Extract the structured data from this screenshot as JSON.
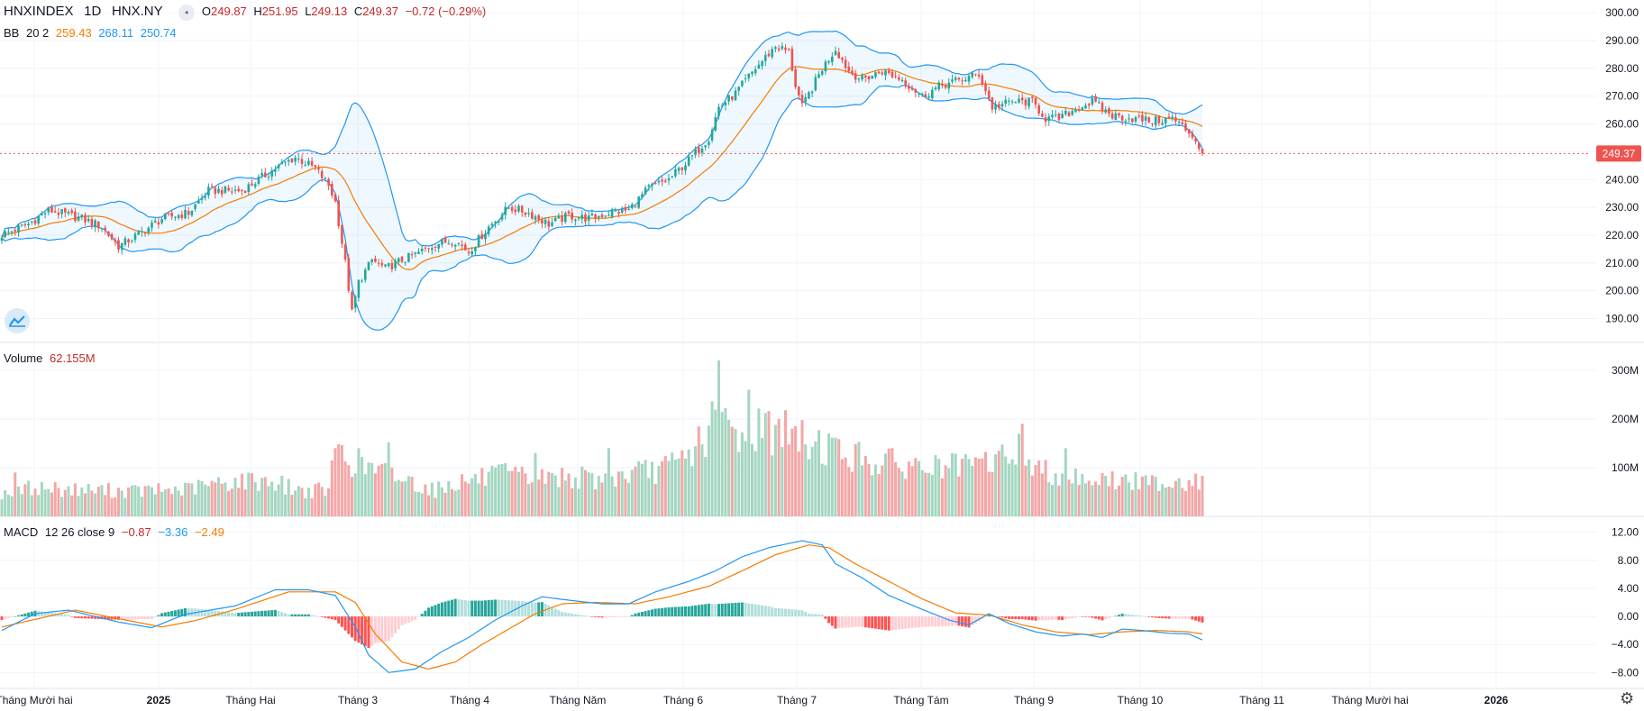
{
  "header": {
    "symbol": "HNXINDEX",
    "interval": "1D",
    "exchange": "HNX.NY",
    "open_label": "O",
    "open": "249.87",
    "high_label": "H",
    "high": "251.95",
    "low_label": "L",
    "low": "249.13",
    "close_label": "C",
    "close": "249.37",
    "change": "−0.72 (−0.29%)"
  },
  "bb_legend": {
    "name": "BB",
    "params": "20 2",
    "basis": "259.43",
    "upper": "268.11",
    "lower": "250.74"
  },
  "volume_legend": {
    "name": "Volume",
    "value": "62.155M"
  },
  "macd_legend": {
    "name": "MACD",
    "params": "12 26 close 9",
    "hist": "−0.87",
    "macd": "−3.36",
    "signal": "−2.49"
  },
  "colors": {
    "up": "#26a69a",
    "down": "#ef5350",
    "vol_up": "#a5d6c1",
    "vol_down": "#f4a6a6",
    "bb_band": "#2196f3",
    "bb_basis": "#f57c00",
    "macd": "#2196f3",
    "signal": "#f57c00"
  },
  "icons": {
    "logo": "tradingview-cloud-icon",
    "settings": "gear-icon"
  },
  "chart_data": [
    {
      "type": "candlestick",
      "title": "HNXINDEX 1D HNX.NY",
      "ylim": [
        184,
        302
      ],
      "y_ticks": [
        "190.00",
        "200.00",
        "210.00",
        "220.00",
        "230.00",
        "240.00",
        "250.00",
        "260.00",
        "270.00",
        "280.00",
        "290.00",
        "300.00"
      ],
      "last_price": "249.37",
      "x_ticks": [
        "Tháng Mười hai",
        "2025",
        "Tháng Hai",
        "Tháng 3",
        "Tháng 4",
        "Tháng Năm",
        "Tháng 6",
        "Tháng 7",
        "Tháng Tám",
        "Tháng 9",
        "Tháng 10",
        "Tháng 11",
        "Tháng Mười hai",
        "2026"
      ],
      "close_anchors": [
        [
          0,
          220
        ],
        [
          8,
          224
        ],
        [
          14,
          229
        ],
        [
          24,
          226
        ],
        [
          30,
          223
        ],
        [
          35,
          216
        ],
        [
          42,
          221
        ],
        [
          48,
          226
        ],
        [
          56,
          228
        ],
        [
          62,
          236
        ],
        [
          72,
          236
        ],
        [
          82,
          244
        ],
        [
          88,
          248
        ],
        [
          94,
          244
        ],
        [
          98,
          238
        ],
        [
          100,
          232
        ],
        [
          103,
          210
        ],
        [
          105,
          192
        ],
        [
          107,
          203
        ],
        [
          111,
          211
        ],
        [
          115,
          208
        ],
        [
          120,
          211
        ],
        [
          124,
          213
        ],
        [
          130,
          217
        ],
        [
          136,
          218
        ],
        [
          140,
          214
        ],
        [
          146,
          223
        ],
        [
          152,
          230
        ],
        [
          158,
          228
        ],
        [
          164,
          224
        ],
        [
          170,
          227
        ],
        [
          176,
          226
        ],
        [
          182,
          228
        ],
        [
          188,
          229
        ],
        [
          194,
          237
        ],
        [
          200,
          240
        ],
        [
          206,
          247
        ],
        [
          212,
          255
        ],
        [
          215,
          266
        ],
        [
          220,
          271
        ],
        [
          226,
          280
        ],
        [
          232,
          288
        ],
        [
          236,
          286
        ],
        [
          238,
          274
        ],
        [
          240,
          266
        ],
        [
          246,
          280
        ],
        [
          250,
          287
        ],
        [
          254,
          279
        ],
        [
          258,
          276
        ],
        [
          264,
          279
        ],
        [
          270,
          276
        ],
        [
          276,
          270
        ],
        [
          282,
          274
        ],
        [
          288,
          276
        ],
        [
          293,
          278
        ],
        [
          297,
          266
        ],
        [
          303,
          268
        ],
        [
          309,
          268
        ],
        [
          313,
          262
        ],
        [
          317,
          262
        ],
        [
          323,
          266
        ],
        [
          327,
          268
        ],
        [
          333,
          263
        ],
        [
          339,
          262
        ],
        [
          345,
          261
        ],
        [
          351,
          262
        ],
        [
          355,
          258
        ],
        [
          357,
          256
        ],
        [
          360,
          249.37
        ]
      ]
    },
    {
      "type": "bar",
      "title": "Volume",
      "ylim": [
        0,
        320
      ],
      "y_ticks": [
        "100M",
        "200M",
        "300M"
      ],
      "vol_anchors": [
        [
          0,
          48
        ],
        [
          10,
          60
        ],
        [
          20,
          55
        ],
        [
          40,
          52
        ],
        [
          55,
          55
        ],
        [
          60,
          62
        ],
        [
          70,
          72
        ],
        [
          80,
          74
        ],
        [
          90,
          52
        ],
        [
          98,
          54
        ],
        [
          100,
          130
        ],
        [
          110,
          100
        ],
        [
          120,
          78
        ],
        [
          130,
          54
        ],
        [
          136,
          70
        ],
        [
          150,
          85
        ],
        [
          160,
          78
        ],
        [
          170,
          82
        ],
        [
          180,
          74
        ],
        [
          190,
          88
        ],
        [
          200,
          100
        ],
        [
          205,
          120
        ],
        [
          210,
          160
        ],
        [
          215,
          200
        ],
        [
          220,
          170
        ],
        [
          225,
          185
        ],
        [
          230,
          180
        ],
        [
          235,
          170
        ],
        [
          240,
          155
        ],
        [
          245,
          150
        ],
        [
          250,
          135
        ],
        [
          260,
          115
        ],
        [
          270,
          105
        ],
        [
          280,
          100
        ],
        [
          290,
          100
        ],
        [
          300,
          120
        ],
        [
          305,
          135
        ],
        [
          310,
          95
        ],
        [
          320,
          85
        ],
        [
          330,
          75
        ],
        [
          340,
          70
        ],
        [
          350,
          72
        ],
        [
          360,
          70
        ]
      ],
      "vol_spikes": [
        [
          4,
          90
        ],
        [
          101,
          148
        ],
        [
          116,
          152
        ],
        [
          160,
          130
        ],
        [
          182,
          140
        ],
        [
          215,
          320
        ],
        [
          224,
          260
        ],
        [
          233,
          200
        ],
        [
          238,
          185
        ],
        [
          248,
          170
        ],
        [
          306,
          190
        ],
        [
          319,
          140
        ]
      ]
    },
    {
      "type": "line",
      "title": "MACD 12 26 close 9",
      "ylim": [
        -9.5,
        13.5
      ],
      "y_ticks": [
        "−8.00",
        "−4.00",
        "0.00",
        "4.00",
        "8.00",
        "12.00"
      ],
      "macd_anchors": [
        [
          0,
          -2.0
        ],
        [
          10,
          0.4
        ],
        [
          20,
          0.9
        ],
        [
          35,
          -0.8
        ],
        [
          45,
          -1.6
        ],
        [
          55,
          0.3
        ],
        [
          70,
          1.5
        ],
        [
          82,
          3.8
        ],
        [
          92,
          3.8
        ],
        [
          100,
          3.0
        ],
        [
          106,
          -1.5
        ],
        [
          110,
          -5.5
        ],
        [
          116,
          -8.0
        ],
        [
          124,
          -7.5
        ],
        [
          132,
          -5.0
        ],
        [
          140,
          -3.0
        ],
        [
          148,
          -0.5
        ],
        [
          156,
          1.5
        ],
        [
          162,
          2.8
        ],
        [
          172,
          2.2
        ],
        [
          180,
          1.8
        ],
        [
          188,
          1.8
        ],
        [
          196,
          3.5
        ],
        [
          206,
          5.0
        ],
        [
          214,
          6.5
        ],
        [
          222,
          8.5
        ],
        [
          230,
          9.8
        ],
        [
          240,
          10.8
        ],
        [
          246,
          10.2
        ],
        [
          250,
          7.5
        ],
        [
          258,
          5.5
        ],
        [
          266,
          3.0
        ],
        [
          276,
          1.0
        ],
        [
          284,
          -0.5
        ],
        [
          290,
          -1.2
        ],
        [
          296,
          0.4
        ],
        [
          302,
          -1.0
        ],
        [
          310,
          -2.2
        ],
        [
          318,
          -2.8
        ],
        [
          324,
          -2.5
        ],
        [
          330,
          -3.0
        ],
        [
          336,
          -1.8
        ],
        [
          342,
          -2.0
        ],
        [
          350,
          -2.4
        ],
        [
          356,
          -2.5
        ],
        [
          360,
          -3.36
        ]
      ],
      "signal_anchors": [
        [
          0,
          -1.5
        ],
        [
          12,
          -0.2
        ],
        [
          22,
          0.9
        ],
        [
          38,
          -0.6
        ],
        [
          48,
          -1.5
        ],
        [
          58,
          -0.6
        ],
        [
          70,
          1.0
        ],
        [
          86,
          3.5
        ],
        [
          100,
          3.5
        ],
        [
          106,
          2.0
        ],
        [
          112,
          -2.5
        ],
        [
          120,
          -6.5
        ],
        [
          128,
          -7.5
        ],
        [
          136,
          -6.5
        ],
        [
          144,
          -4.0
        ],
        [
          152,
          -1.8
        ],
        [
          160,
          0.4
        ],
        [
          168,
          1.8
        ],
        [
          178,
          2.0
        ],
        [
          190,
          1.8
        ],
        [
          200,
          2.8
        ],
        [
          212,
          4.3
        ],
        [
          222,
          6.5
        ],
        [
          232,
          8.8
        ],
        [
          242,
          10.2
        ],
        [
          248,
          9.8
        ],
        [
          256,
          7.5
        ],
        [
          266,
          5.0
        ],
        [
          276,
          2.5
        ],
        [
          286,
          0.5
        ],
        [
          296,
          0.2
        ],
        [
          306,
          -1.2
        ],
        [
          316,
          -2.2
        ],
        [
          326,
          -2.6
        ],
        [
          336,
          -2.2
        ],
        [
          346,
          -2.0
        ],
        [
          356,
          -2.2
        ],
        [
          360,
          -2.49
        ]
      ],
      "last_hist": "−0.87"
    }
  ]
}
